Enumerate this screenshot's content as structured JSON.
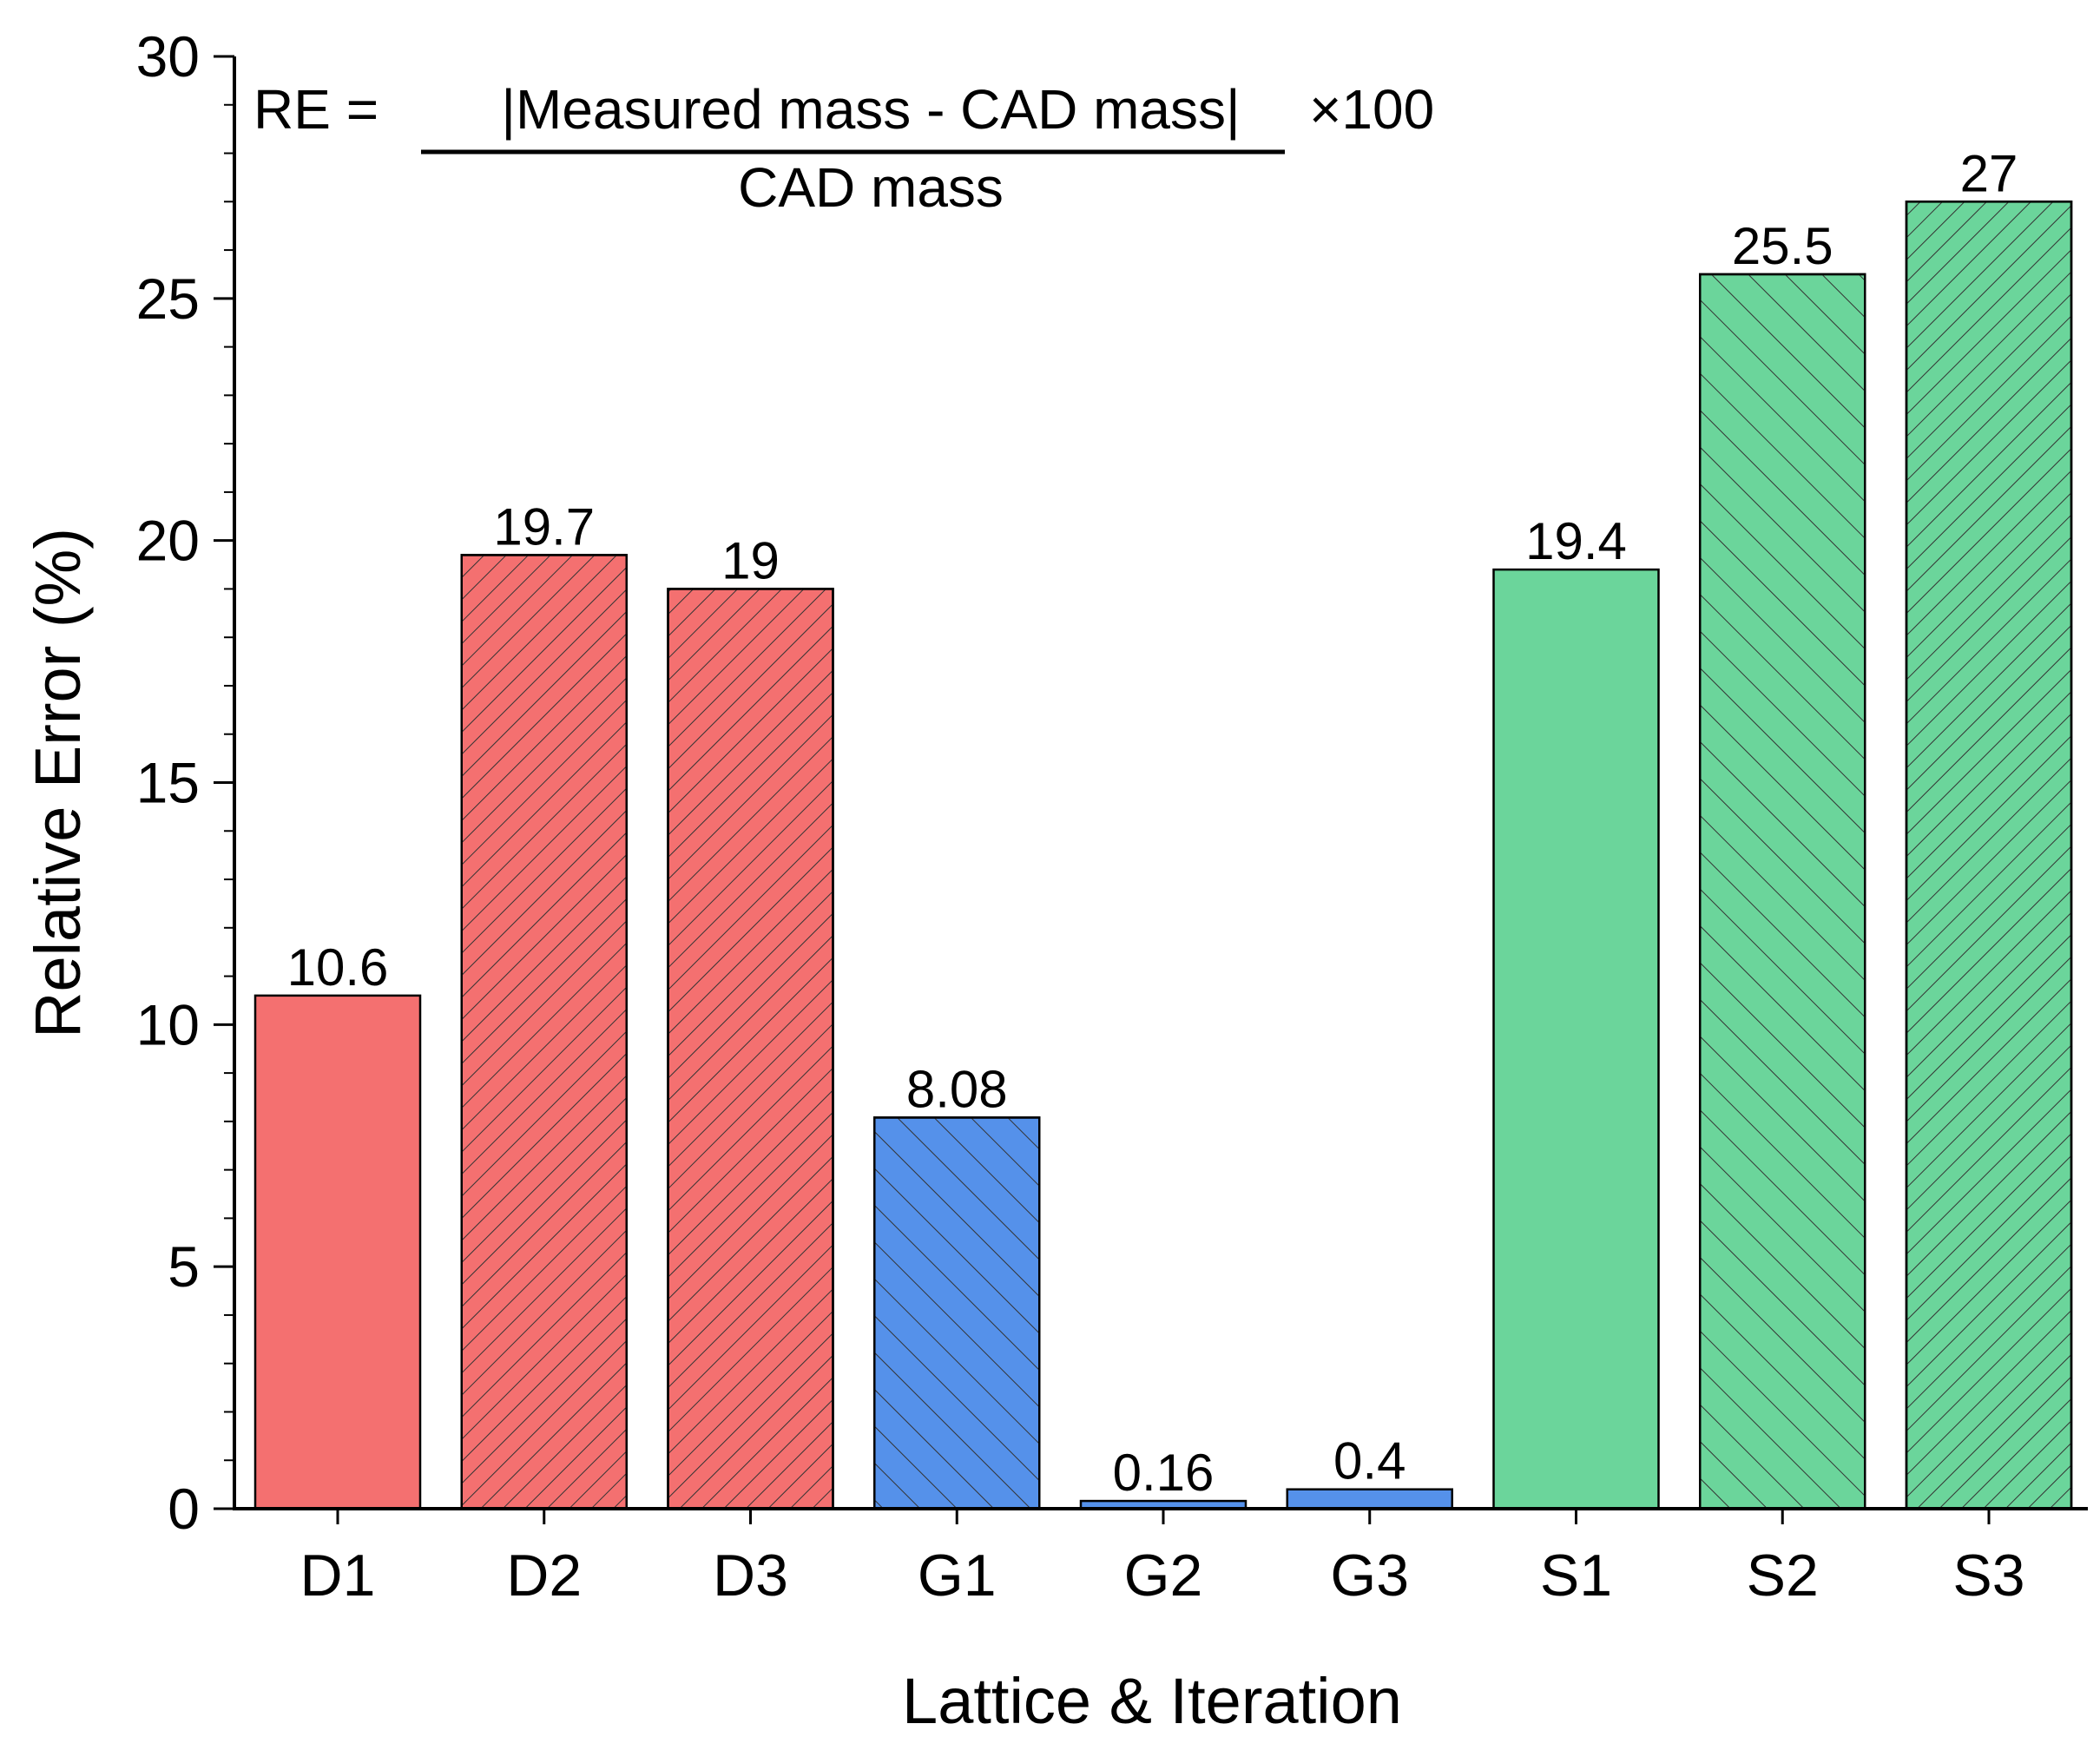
{
  "chart_data": {
    "type": "bar",
    "categories": [
      "D1",
      "D2",
      "D3",
      "G1",
      "G2",
      "G3",
      "S1",
      "S2",
      "S3"
    ],
    "values": [
      10.6,
      19.7,
      19,
      8.08,
      0.16,
      0.4,
      19.4,
      25.5,
      27
    ],
    "data_labels": [
      "10.6",
      "19.7",
      "19",
      "8.08",
      "0.16",
      "0.4",
      "19.4",
      "25.5",
      "27"
    ],
    "groups": [
      "D",
      "D",
      "D",
      "G",
      "G",
      "G",
      "S",
      "S",
      "S"
    ],
    "hatch": [
      "none",
      "dense",
      "dense",
      "sparse",
      "none",
      "none",
      "none",
      "sparse",
      "dense"
    ],
    "group_colors": {
      "D": "#f47070",
      "G": "#5591ea",
      "S": "#6bd59b"
    },
    "title": "",
    "xlabel": "Lattice & Iteration",
    "ylabel": "Relative Error (%)",
    "ylim": [
      0,
      30
    ],
    "yticks": [
      0,
      5,
      10,
      15,
      20,
      25,
      30
    ],
    "grid": false,
    "annotation": {
      "lhs": "RE = ",
      "numerator": "|Measured mass - CAD mass|",
      "denominator": "CAD mass",
      "factor": "×100"
    }
  }
}
